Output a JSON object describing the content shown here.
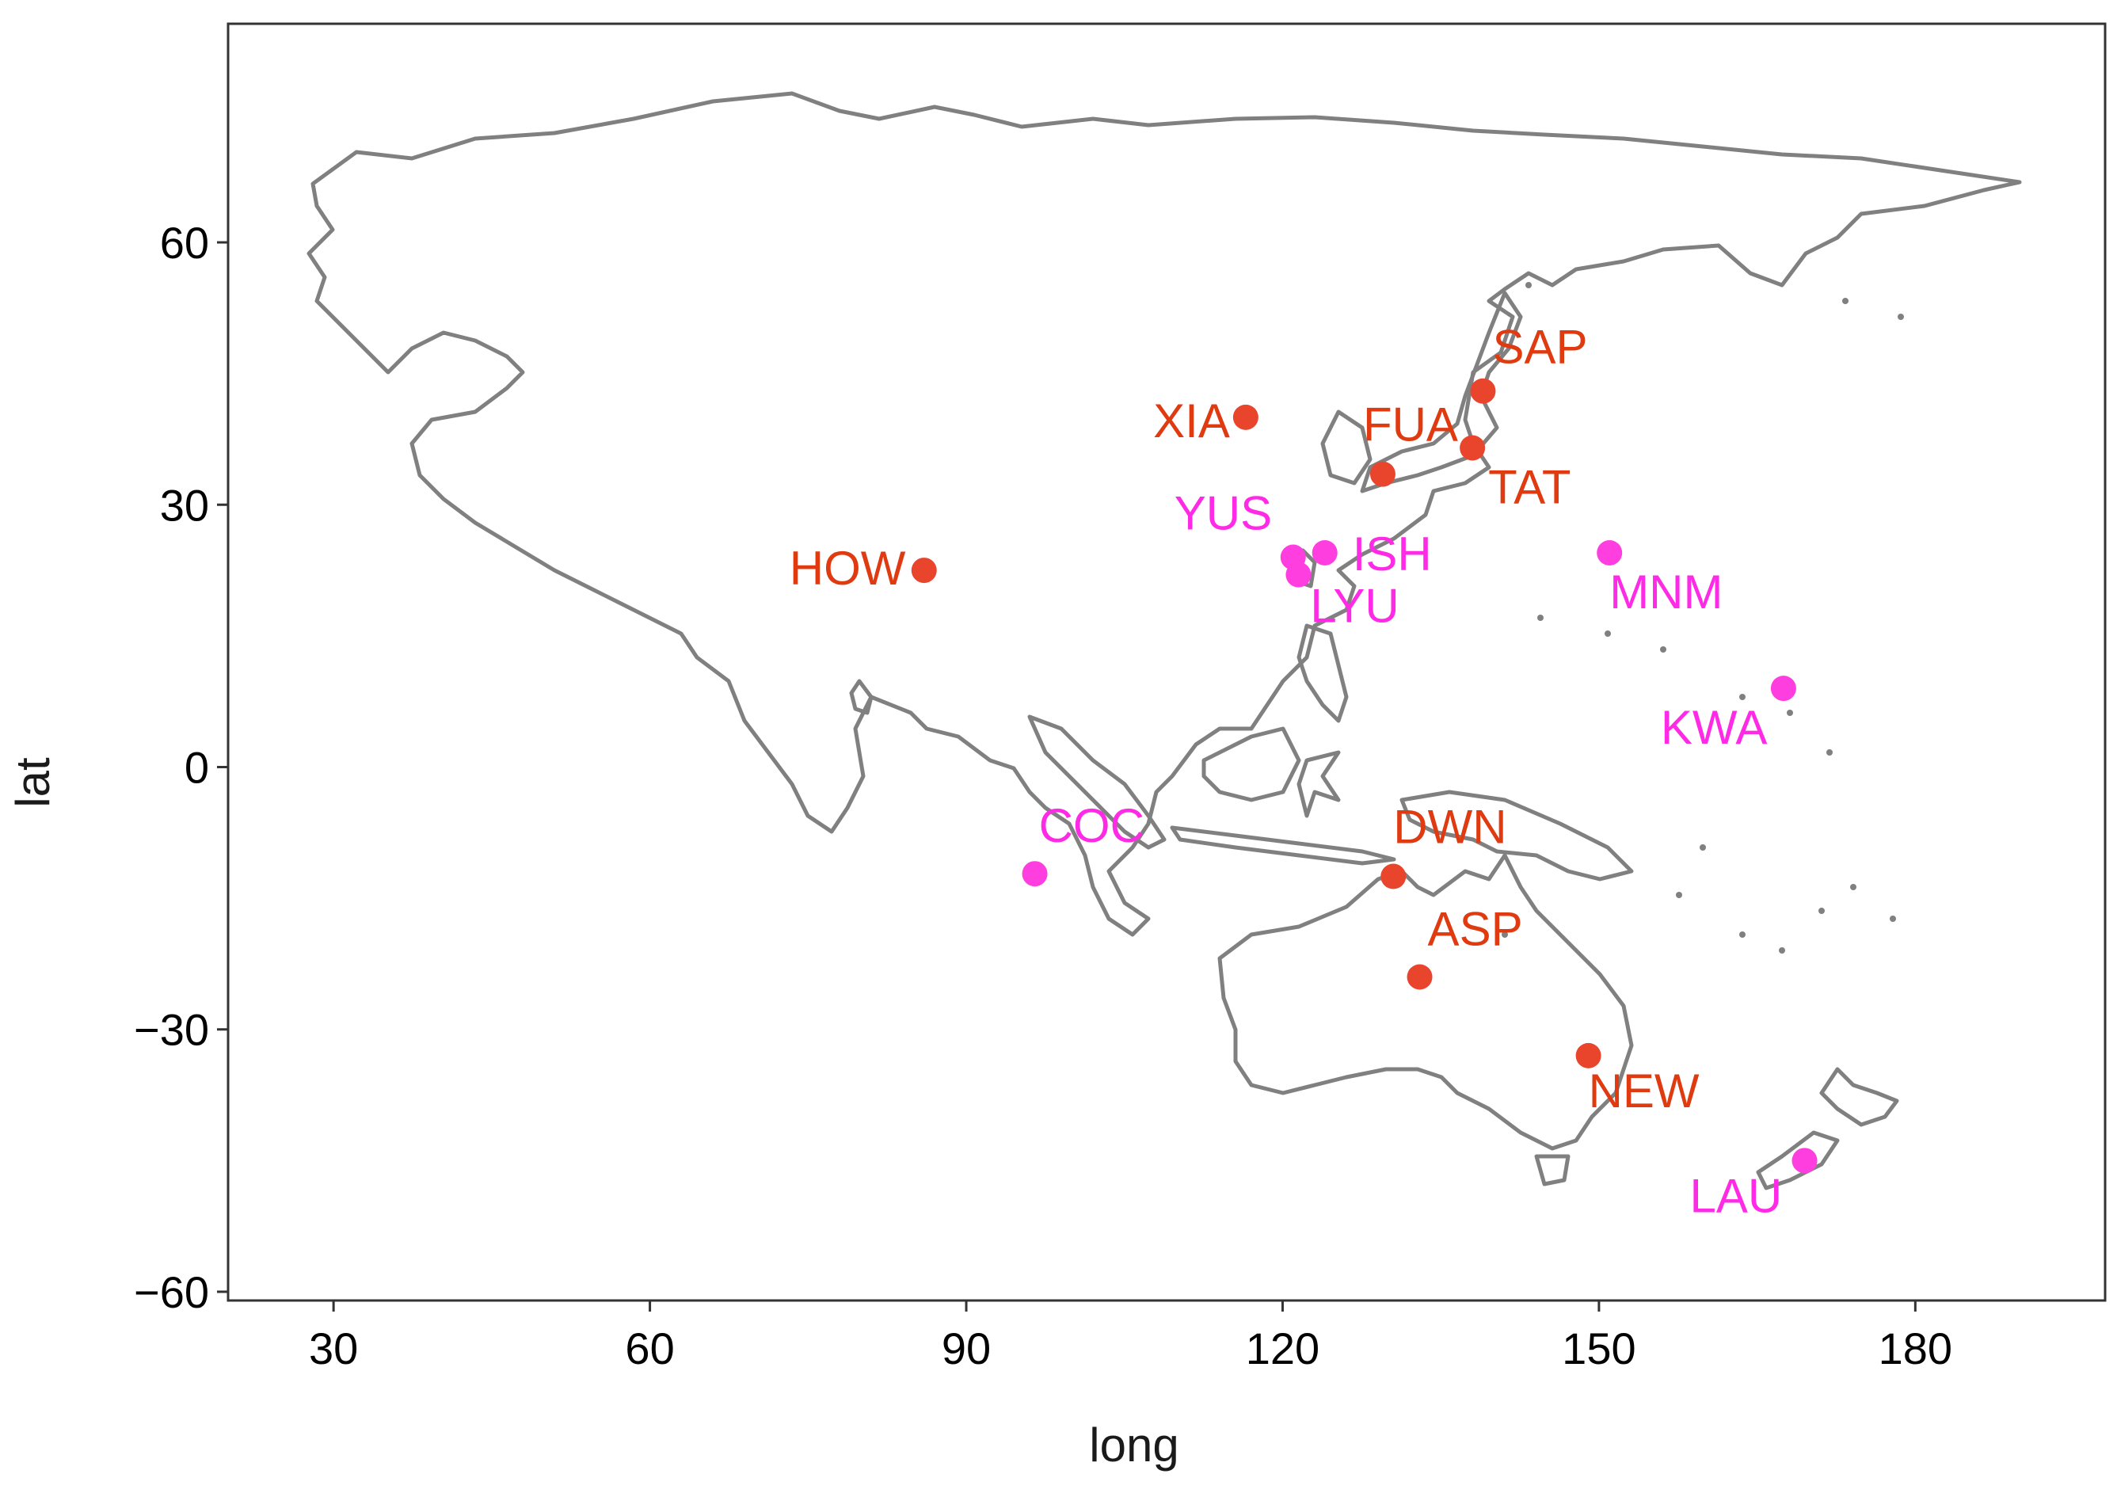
{
  "chart_data": {
    "type": "scatter",
    "xlabel": "long",
    "ylabel": "lat",
    "xlim": [
      20,
      198
    ],
    "ylim": [
      -61,
      85
    ],
    "xticks": [
      30,
      60,
      90,
      120,
      150,
      180
    ],
    "yticks": [
      -60,
      -30,
      0,
      30,
      60
    ],
    "xtick_labels": [
      "30",
      "60",
      "90",
      "120",
      "150",
      "180"
    ],
    "ytick_labels": [
      "−60",
      "−30",
      "0",
      "30",
      "60"
    ],
    "grid": false,
    "basemap": "world coastline outline (Asia, Australia, Pacific islands)",
    "series": [
      {
        "color": "#e8452c",
        "label_color": "#e03a10",
        "points": [
          {
            "label": "XIA",
            "x": 116.5,
            "y": 40.0
          },
          {
            "label": "SAP",
            "x": 139.0,
            "y": 43.0
          },
          {
            "label": "FUA",
            "x": 129.5,
            "y": 33.5
          },
          {
            "label": "TAT",
            "x": 138.0,
            "y": 36.5
          },
          {
            "label": "HOW",
            "x": 86.0,
            "y": 22.5
          },
          {
            "label": "DWN",
            "x": 130.5,
            "y": -12.5
          },
          {
            "label": "ASP",
            "x": 133.0,
            "y": -24.0
          },
          {
            "label": "NEW",
            "x": 149.0,
            "y": -33.0
          }
        ]
      },
      {
        "color": "#ff3ee0",
        "label_color": "#ff2ae6",
        "points": [
          {
            "label": "YUS",
            "x": 121.0,
            "y": 24.0
          },
          {
            "label": "ISH",
            "x": 124.0,
            "y": 24.5
          },
          {
            "label": "LYU",
            "x": 121.5,
            "y": 22.0
          },
          {
            "label": "MNM",
            "x": 151.0,
            "y": 24.5
          },
          {
            "label": "KWA",
            "x": 167.5,
            "y": 9.0
          },
          {
            "label": "COC",
            "x": 96.5,
            "y": -12.2
          },
          {
            "label": "LAU",
            "x": 169.5,
            "y": -45.0
          }
        ]
      }
    ]
  }
}
